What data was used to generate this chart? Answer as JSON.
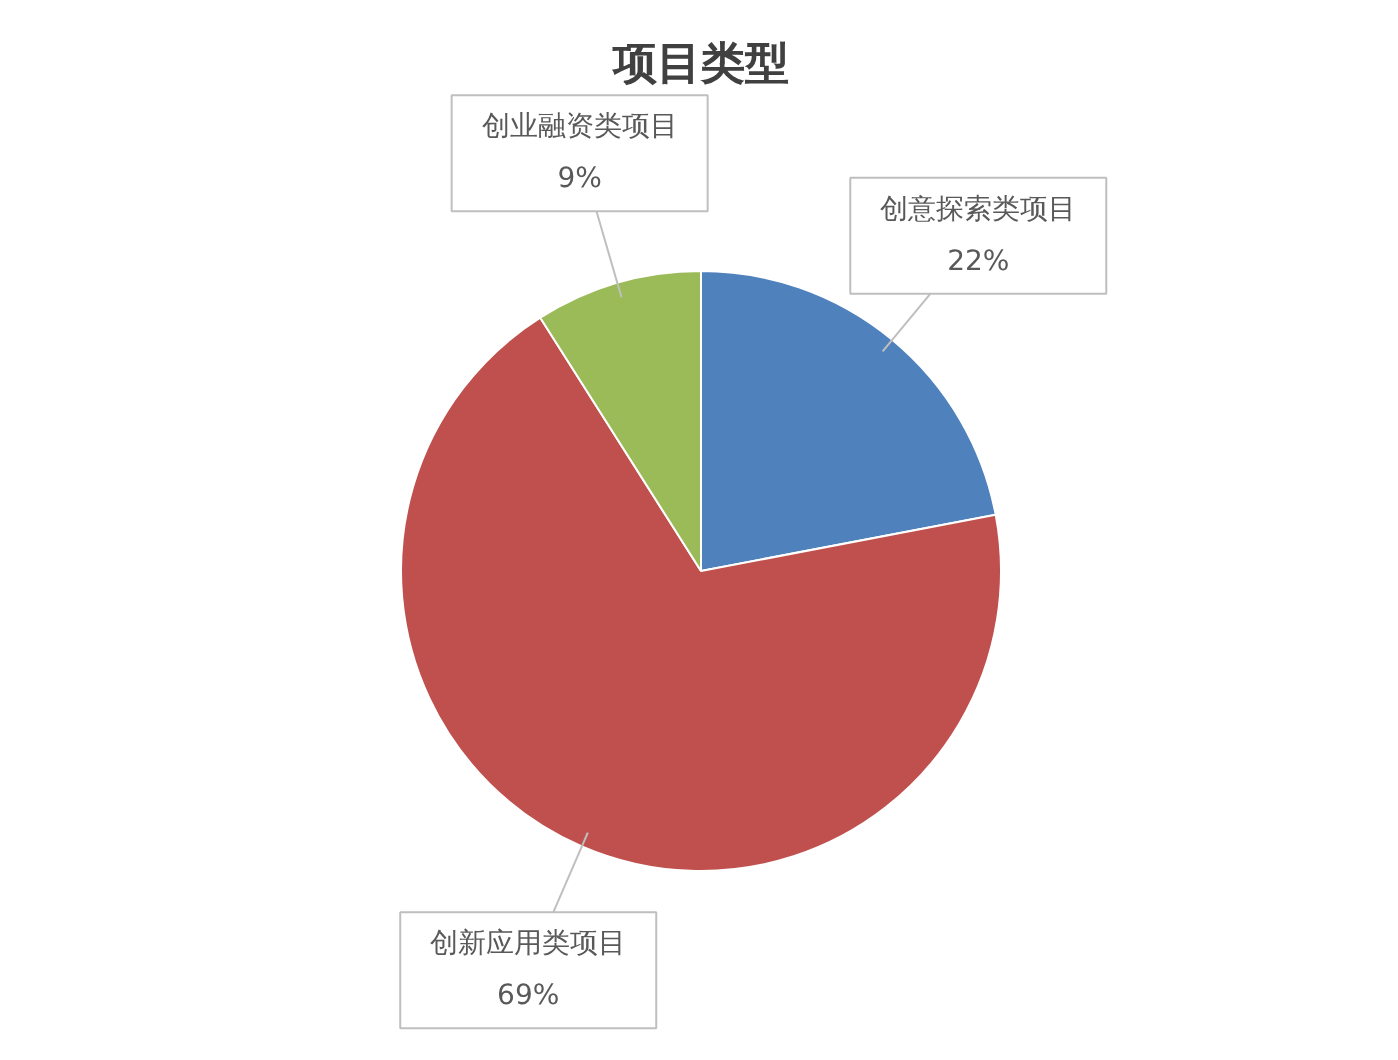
{
  "chart_data": {
    "type": "pie",
    "title": "项目类型",
    "categories": [
      "创意探索类项目",
      "创新应用类项目",
      "创业融资类项目"
    ],
    "values": [
      22,
      69,
      9
    ],
    "value_labels": [
      "22%",
      "69%",
      "9%"
    ],
    "colors": [
      "#4f81bd",
      "#c0504d",
      "#9bbb59"
    ]
  }
}
